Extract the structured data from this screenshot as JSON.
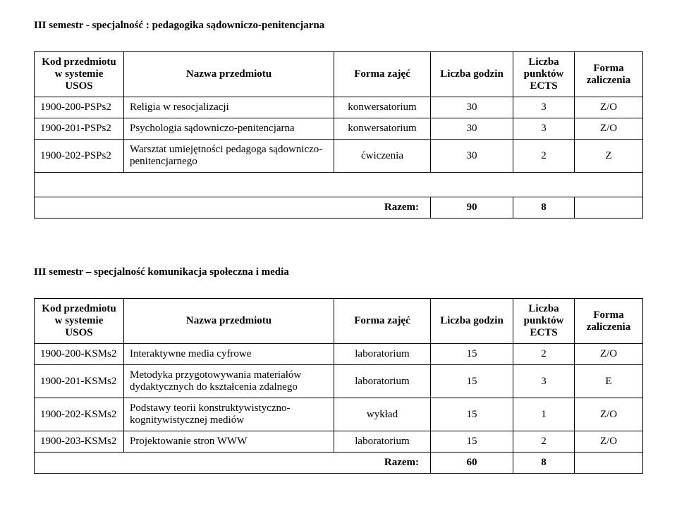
{
  "colors": {
    "text": "#000000",
    "background": "#ffffff",
    "border": "#000000"
  },
  "typography": {
    "font_family": "Times New Roman",
    "base_font_size_pt": 11,
    "heading_weight": "bold"
  },
  "headers": {
    "kod": "Kod przedmiotu w systemie USOS",
    "nazwa": "Nazwa przedmiotu",
    "forma_zajec": "Forma zajęć",
    "liczba_godzin": "Liczba godzin",
    "ects": "Liczba punktów ECTS",
    "zaliczenie": "Forma zaliczenia",
    "razem": "Razem:"
  },
  "sections": {
    "s1": {
      "title": "III semestr  - specjalność : pedagogika sądowniczo-penitencjarna",
      "rows": [
        {
          "kod": "1900-200-PSPs2",
          "nazwa": "Religia w resocjalizacji",
          "forma": "konwersatorium",
          "godzin": "30",
          "ects": "3",
          "zal": "Z/O"
        },
        {
          "kod": "1900-201-PSPs2",
          "nazwa": "Psychologia sądowniczo-penitencjarna",
          "forma": "konwersatorium",
          "godzin": "30",
          "ects": "3",
          "zal": "Z/O"
        },
        {
          "kod": "1900-202-PSPs2",
          "nazwa": "Warsztat umiejętności pedagoga sądowniczo-penitencjarnego",
          "forma": "ćwiczenia",
          "godzin": "30",
          "ects": "2",
          "zal": "Z"
        }
      ],
      "razem": {
        "godzin": "90",
        "ects": "8"
      }
    },
    "s2": {
      "title": "III semestr – specjalność komunikacja społeczna i media",
      "rows": [
        {
          "kod": "1900-200-KSMs2",
          "nazwa": "Interaktywne media cyfrowe",
          "forma": "laboratorium",
          "godzin": "15",
          "ects": "2",
          "zal": "Z/O"
        },
        {
          "kod": "1900-201-KSMs2",
          "nazwa": "Metodyka przygotowywania materiałów dydaktycznych do kształcenia zdalnego",
          "forma": "laboratorium",
          "godzin": "15",
          "ects": "3",
          "zal": "E"
        },
        {
          "kod": "1900-202-KSMs2",
          "nazwa": "Podstawy teorii konstruktywistyczno-kognitywistycznej mediów",
          "forma": "wykład",
          "godzin": "15",
          "ects": "1",
          "zal": "Z/O"
        },
        {
          "kod": "1900-203-KSMs2",
          "nazwa": "Projektowanie stron WWW",
          "forma": "laboratorium",
          "godzin": "15",
          "ects": "2",
          "zal": "Z/O"
        }
      ],
      "razem": {
        "godzin": "60",
        "ects": "8"
      }
    }
  }
}
